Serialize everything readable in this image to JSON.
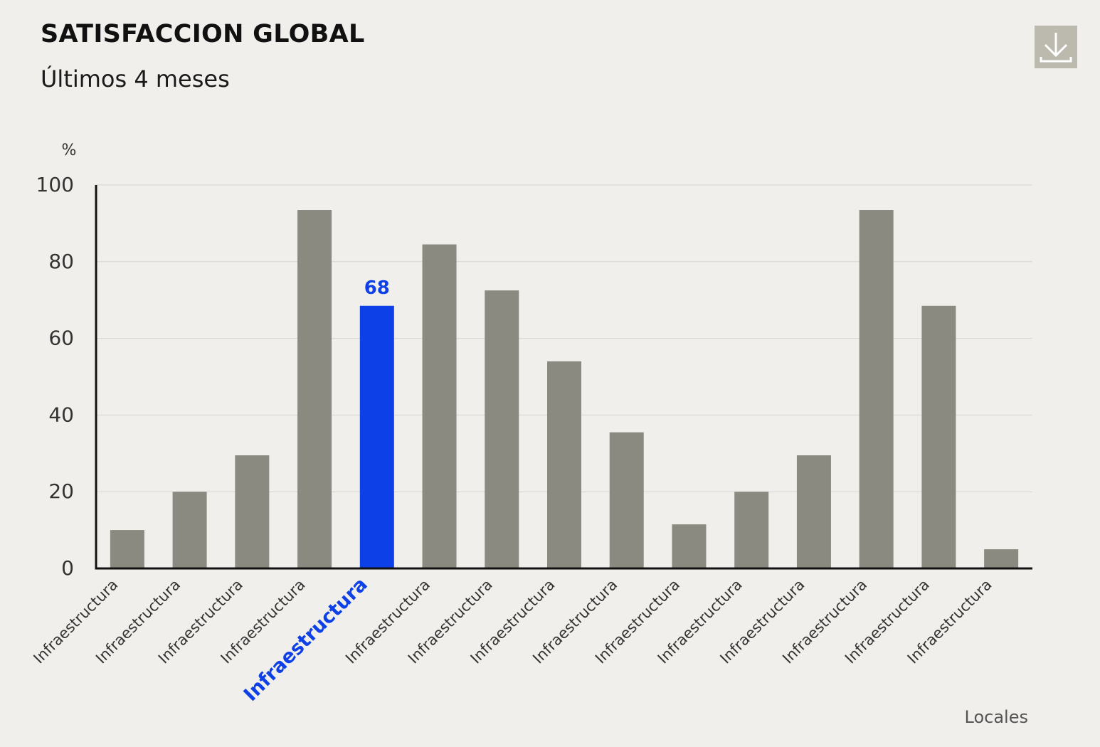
{
  "header": {
    "title": "SATISFACCION GLOBAL",
    "subtitle": "Últimos 4 meses"
  },
  "download": {
    "icon": "download-icon"
  },
  "colors": {
    "background": "#f0efeb",
    "bar": "#8b8a81",
    "highlight": "#0e40e8",
    "axis": "#111111",
    "grid": "#d6d5d0",
    "text": "#333333"
  },
  "chart_data": {
    "type": "bar",
    "categories": [
      "Infraestructura",
      "Infraestructura",
      "Infraestructura",
      "Infraestructura",
      "Infraestructura",
      "Infraestructura",
      "Infraestructura",
      "Infraestructura",
      "Infraestructura",
      "Infraestructura",
      "Infraestructura",
      "Infraestructura",
      "Infraestructura",
      "Infraestructura",
      "Infraestructura"
    ],
    "values": [
      10,
      20,
      29.5,
      93.5,
      68.5,
      84.5,
      72.5,
      54,
      35.5,
      11.5,
      20,
      29.5,
      93.5,
      68.5,
      5
    ],
    "highlight_index": 4,
    "highlight_label": "68",
    "yunit": "%",
    "xlabel": "Locales",
    "ylim": [
      0,
      100
    ],
    "yticks": [
      0,
      20,
      40,
      60,
      80,
      100
    ],
    "grid": true
  }
}
